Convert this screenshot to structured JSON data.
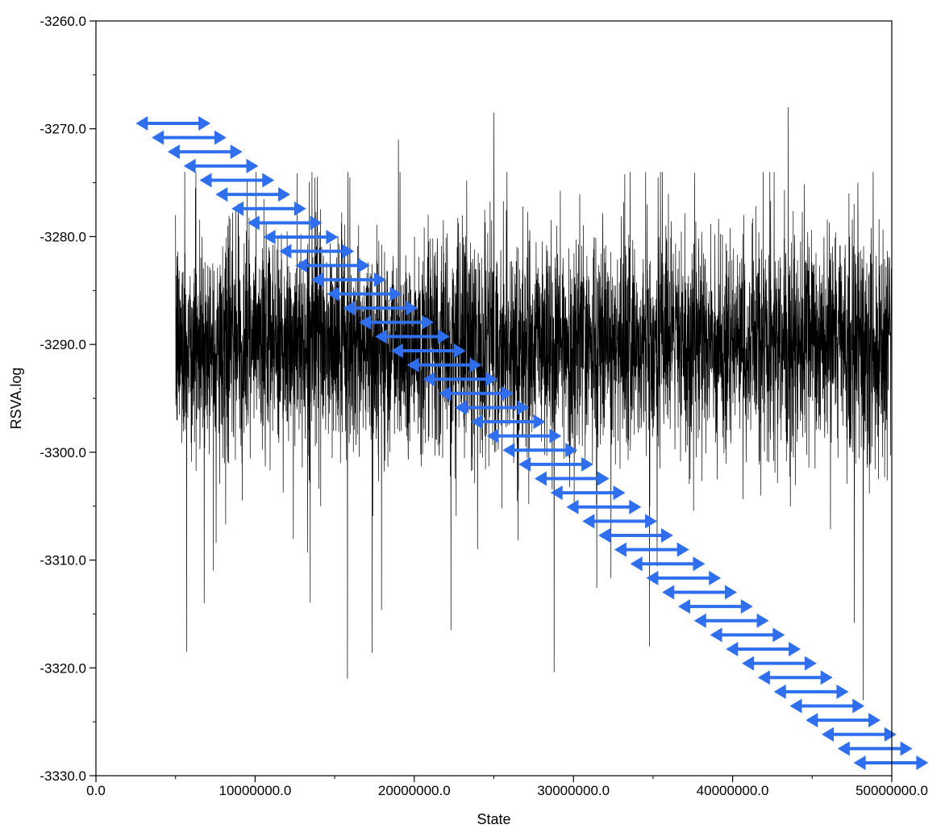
{
  "chart_data": {
    "type": "line",
    "title": "",
    "xlabel": "State",
    "ylabel": "RSVA.log",
    "xlim": [
      0,
      50000000
    ],
    "ylim": [
      -3330,
      -3260
    ],
    "x_ticks": [
      0,
      10000000,
      20000000,
      30000000,
      40000000,
      50000000
    ],
    "x_tick_labels": [
      "0.0",
      "10000000.0",
      "20000000.0",
      "30000000.0",
      "40000000.0",
      "50000000.0"
    ],
    "y_ticks": [
      -3330,
      -3320,
      -3310,
      -3300,
      -3290,
      -3280,
      -3270,
      -3260
    ],
    "y_tick_labels": [
      "-3330.0",
      "-3320.0",
      "-3310.0",
      "-3300.0",
      "-3290.0",
      "-3280.0",
      "-3270.0",
      "-3260.0"
    ],
    "grid": false,
    "series": [
      {
        "x_start": 5000000,
        "x_end": 50000000,
        "typical_mean": -3290,
        "typical_band": [
          -3300,
          -3280
        ],
        "approx_extremes": [
          {
            "x": 5000000,
            "y": -3278
          },
          {
            "x": 5700000,
            "y": -3318.5
          },
          {
            "x": 6800000,
            "y": -3314
          },
          {
            "x": 15800000,
            "y": -3321
          },
          {
            "x": 19000000,
            "y": -3271
          },
          {
            "x": 22300000,
            "y": -3316.5
          },
          {
            "x": 25000000,
            "y": -3268.5
          },
          {
            "x": 43500000,
            "y": -3268
          },
          {
            "x": 48200000,
            "y": -3323
          }
        ]
      }
    ],
    "annotation": {
      "shape": "double-headed-arrows",
      "color": "#2f6fed",
      "count": 46,
      "span_x": 4700000,
      "first": {
        "x": 2500000,
        "y": -3269.5
      },
      "last": {
        "x": 47600000,
        "y": -3328.8
      }
    }
  }
}
